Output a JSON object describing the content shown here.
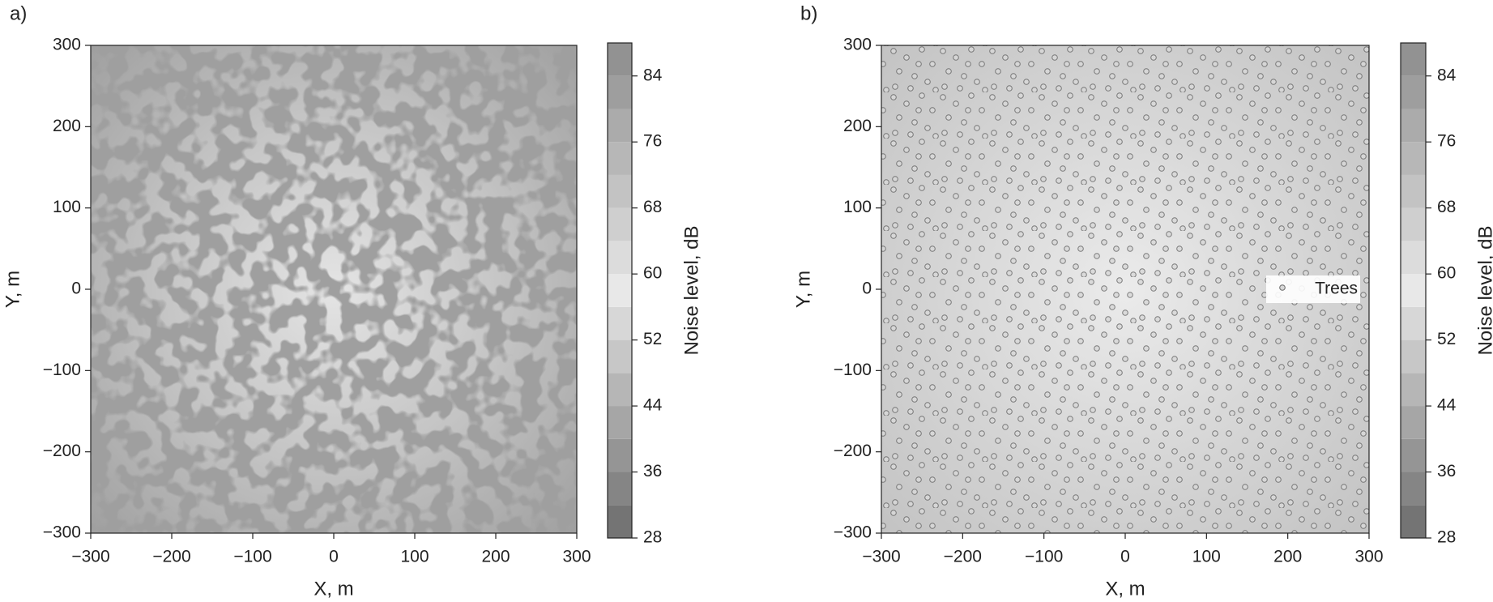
{
  "chart_data": [
    {
      "type": "heatmap",
      "panel_label": "a)",
      "xlabel": "X, m",
      "ylabel": "Y, m",
      "xlim": [
        -300,
        300
      ],
      "ylim": [
        -300,
        300
      ],
      "xticks": [
        {
          "value": -300,
          "label": "−300"
        },
        {
          "value": -200,
          "label": "−200"
        },
        {
          "value": -100,
          "label": "−100"
        },
        0,
        100,
        200,
        300
      ],
      "yticks": [
        {
          "value": -300,
          "label": "−300"
        },
        {
          "value": -200,
          "label": "−200"
        },
        {
          "value": -100,
          "label": "−100"
        },
        0,
        100,
        200,
        300
      ],
      "colorbar_label": "Noise level, dB",
      "clim": [
        28,
        88
      ],
      "cticks": [
        28,
        36,
        44,
        52,
        60,
        68,
        76,
        84
      ],
      "colormap": [
        "#6c6c6c",
        "#e8e8e8",
        "#8c8c8c"
      ]
    },
    {
      "type": "heatmap",
      "panel_label": "b)",
      "xlabel": "X, m",
      "ylabel": "Y, m",
      "xlim": [
        -300,
        300
      ],
      "ylim": [
        -300,
        300
      ],
      "xticks": [
        {
          "value": -300,
          "label": "−300"
        },
        {
          "value": -200,
          "label": "−200"
        },
        {
          "value": -100,
          "label": "−100"
        },
        0,
        100,
        200,
        300
      ],
      "yticks": [
        {
          "value": -300,
          "label": "−300"
        },
        {
          "value": -200,
          "label": "−200"
        },
        {
          "value": -100,
          "label": "−100"
        },
        0,
        100,
        200,
        300
      ],
      "colorbar_label": "Noise level, dB",
      "clim": [
        28,
        88
      ],
      "cticks": [
        28,
        36,
        44,
        52,
        60,
        68,
        76,
        84
      ],
      "colormap": [
        "#6c6c6c",
        "#e8e8e8",
        "#8c8c8c"
      ],
      "series": [
        {
          "name": "Trees"
        }
      ]
    }
  ]
}
